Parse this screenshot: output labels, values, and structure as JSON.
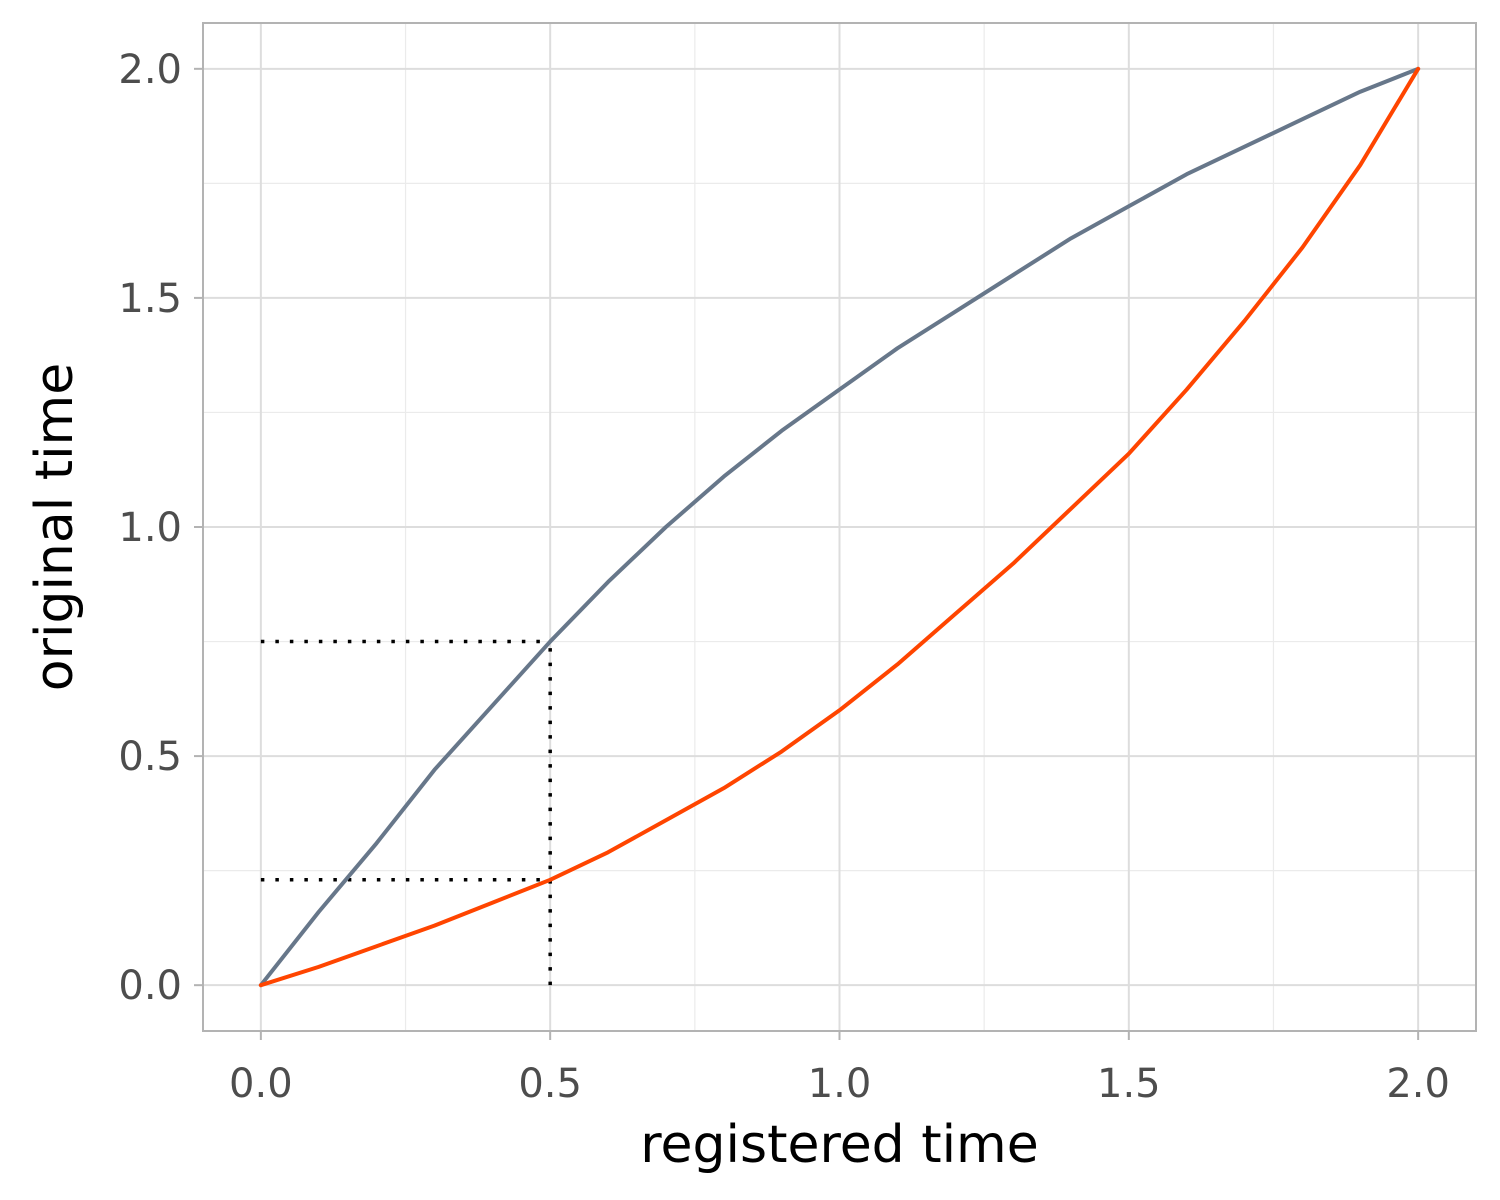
{
  "chart_data": {
    "type": "line",
    "title": "",
    "xlabel": "registered time",
    "ylabel": "original time",
    "xlim": [
      -0.1,
      2.1
    ],
    "ylim": [
      -0.1,
      2.1
    ],
    "x_ticks": [
      0.0,
      0.5,
      1.0,
      1.5,
      2.0
    ],
    "y_ticks": [
      0.0,
      0.5,
      1.0,
      1.5,
      2.0
    ],
    "x_tick_labels": [
      "0.0",
      "0.5",
      "1.0",
      "1.5",
      "2.0"
    ],
    "y_tick_labels": [
      "0.0",
      "0.5",
      "1.0",
      "1.5",
      "2.0"
    ],
    "x_minor_ticks": [
      0.25,
      0.75,
      1.25,
      1.75
    ],
    "y_minor_ticks": [
      0.25,
      0.75,
      1.25,
      1.75
    ],
    "grid": true,
    "legend": "none",
    "series": [
      {
        "color": "#67778a",
        "x": [
          0.0,
          0.1,
          0.2,
          0.3,
          0.4,
          0.5,
          0.6,
          0.7,
          0.8,
          0.9,
          1.0,
          1.1,
          1.2,
          1.3,
          1.4,
          1.5,
          1.6,
          1.7,
          1.8,
          1.9,
          2.0
        ],
        "y": [
          0.0,
          0.16,
          0.31,
          0.47,
          0.61,
          0.75,
          0.88,
          1.0,
          1.11,
          1.21,
          1.3,
          1.39,
          1.47,
          1.55,
          1.63,
          1.7,
          1.77,
          1.83,
          1.89,
          1.95,
          2.0
        ]
      },
      {
        "color": "#ff4500",
        "x": [
          0.0,
          0.1,
          0.2,
          0.3,
          0.4,
          0.5,
          0.6,
          0.7,
          0.8,
          0.9,
          1.0,
          1.1,
          1.2,
          1.3,
          1.4,
          1.5,
          1.6,
          1.7,
          1.8,
          1.9,
          2.0
        ],
        "y": [
          0.0,
          0.04,
          0.085,
          0.13,
          0.18,
          0.23,
          0.29,
          0.36,
          0.43,
          0.51,
          0.6,
          0.7,
          0.81,
          0.92,
          1.04,
          1.16,
          1.3,
          1.45,
          1.61,
          1.79,
          2.0
        ]
      }
    ],
    "reference_lines": [
      {
        "x": [
          0.0,
          0.5
        ],
        "y": [
          0.75,
          0.75
        ],
        "style": "dotted",
        "color": "#000000"
      },
      {
        "x": [
          0.0,
          0.5
        ],
        "y": [
          0.23,
          0.23
        ],
        "style": "dotted",
        "color": "#000000"
      },
      {
        "x": [
          0.5,
          0.5
        ],
        "y": [
          0.0,
          0.75
        ],
        "style": "dotted",
        "color": "#000000"
      }
    ],
    "colors": {
      "grid_major": "#dddddd",
      "grid_minor": "#ebebeb",
      "panel_border": "#b3b3b3",
      "tick_label": "#4d4d4d",
      "axis_title": "#000000"
    }
  }
}
